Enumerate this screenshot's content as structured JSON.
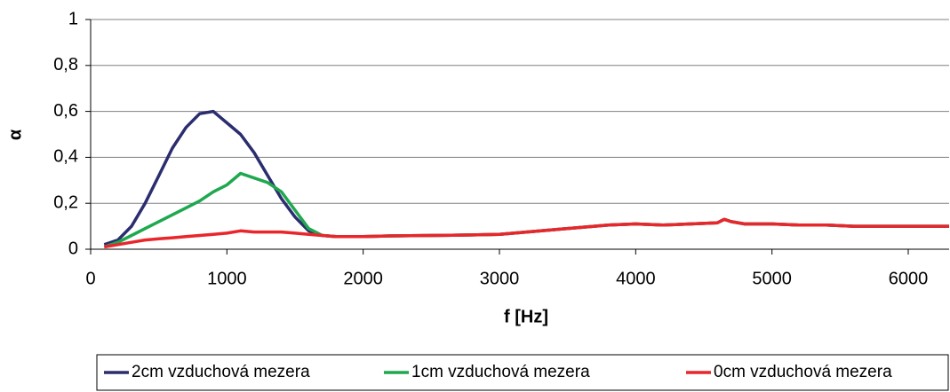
{
  "chart_data": {
    "type": "line",
    "x_label": "f [Hz]",
    "y_label": "α",
    "x": [
      100,
      200,
      300,
      400,
      500,
      600,
      700,
      800,
      900,
      1000,
      1100,
      1200,
      1300,
      1400,
      1500,
      1600,
      1700,
      1800,
      2000,
      2200,
      2500,
      2800,
      3000,
      3200,
      3400,
      3600,
      3800,
      4000,
      4200,
      4400,
      4600,
      4650,
      4700,
      4800,
      5000,
      5200,
      5400,
      5600,
      5800,
      6000,
      6200,
      6300
    ],
    "series": [
      {
        "name": "2cm vzduchová mezera",
        "color": "#2b2d6e",
        "values": [
          0.02,
          0.04,
          0.1,
          0.2,
          0.32,
          0.44,
          0.53,
          0.59,
          0.6,
          0.55,
          0.5,
          0.42,
          0.32,
          0.22,
          0.14,
          0.08,
          0.06,
          0.055,
          0.055,
          0.058,
          0.06,
          0.062,
          0.065,
          0.075,
          0.085,
          0.095,
          0.105,
          0.11,
          0.105,
          0.11,
          0.115,
          0.13,
          0.12,
          0.11,
          0.11,
          0.105,
          0.105,
          0.1,
          0.1,
          0.1,
          0.1,
          0.1
        ]
      },
      {
        "name": "1cm vzduchová mezera",
        "color": "#1fa84f",
        "values": [
          0.01,
          0.03,
          0.06,
          0.09,
          0.12,
          0.15,
          0.18,
          0.21,
          0.25,
          0.28,
          0.33,
          0.31,
          0.29,
          0.25,
          0.17,
          0.09,
          0.06,
          0.055,
          0.055,
          0.058,
          0.06,
          0.062,
          0.065,
          0.075,
          0.085,
          0.095,
          0.105,
          0.11,
          0.105,
          0.11,
          0.115,
          0.13,
          0.12,
          0.11,
          0.11,
          0.105,
          0.105,
          0.1,
          0.1,
          0.1,
          0.1,
          0.1
        ]
      },
      {
        "name": "0cm vzduchová mezera",
        "color": "#e8262b",
        "values": [
          0.01,
          0.02,
          0.03,
          0.04,
          0.045,
          0.05,
          0.055,
          0.06,
          0.065,
          0.07,
          0.08,
          0.075,
          0.075,
          0.075,
          0.07,
          0.065,
          0.06,
          0.055,
          0.055,
          0.058,
          0.06,
          0.062,
          0.065,
          0.075,
          0.085,
          0.095,
          0.105,
          0.11,
          0.105,
          0.11,
          0.115,
          0.13,
          0.12,
          0.11,
          0.11,
          0.105,
          0.105,
          0.1,
          0.1,
          0.1,
          0.1,
          0.1
        ]
      }
    ],
    "xlim": [
      0,
      6300
    ],
    "xticks": [
      0,
      1000,
      2000,
      3000,
      4000,
      5000,
      6000
    ],
    "ylim": [
      0,
      1
    ],
    "yticks": [
      0,
      {
        "value": 0.2,
        "label": "0,2"
      },
      {
        "value": 0.4,
        "label": "0,4"
      },
      {
        "value": 0.6,
        "label": "0,6"
      },
      {
        "value": 0.8,
        "label": "0,8"
      },
      1
    ],
    "grid": true,
    "legend": "bottom"
  }
}
